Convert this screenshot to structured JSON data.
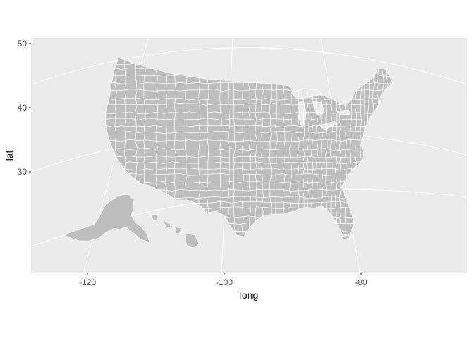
{
  "chart_data": {
    "type": "map",
    "title": "",
    "xlabel": "long",
    "ylabel": "lat",
    "x_ticks": [
      -120,
      -100,
      -80
    ],
    "y_ticks": [
      30,
      40,
      50
    ],
    "xlim": [
      -128.5,
      -62.5
    ],
    "ylim": [
      20.5,
      51.5
    ],
    "projection": "albers-like conic",
    "fill_color": "#bebebe",
    "border_color": "#ffffff",
    "panel_background": "#ebebeb",
    "grid": true,
    "legend": "none",
    "regions": [
      "contiguous-us-counties",
      "alaska",
      "hawaii"
    ]
  }
}
